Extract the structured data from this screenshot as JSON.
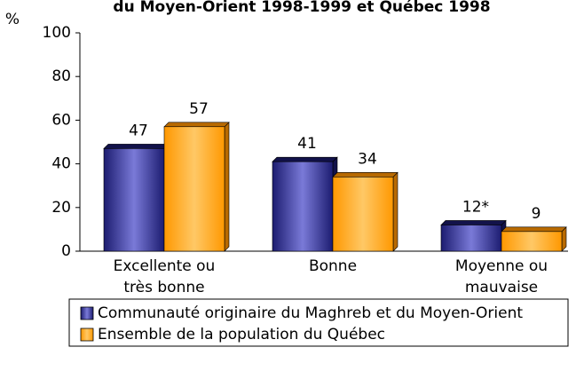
{
  "chart_data": {
    "type": "bar",
    "title": "du Moyen-Orient 1998-1999 et Québec 1998",
    "y_label": "%",
    "categories": [
      "Excellente ou très bonne",
      "Bonne",
      "Moyenne ou mauvaise"
    ],
    "series": [
      {
        "name": "Communauté originaire du Maghreb et du Moyen-Orient",
        "color": "#2b2b8f",
        "values": [
          47,
          41,
          12
        ],
        "value_labels": [
          "47",
          "41",
          "12*"
        ]
      },
      {
        "name": "Ensemble de la population du Québec",
        "color": "#ffa500",
        "values": [
          57,
          34,
          9
        ]
      }
    ],
    "ylim": [
      0,
      100
    ],
    "yticks": [
      0,
      20,
      40,
      60,
      80,
      100
    ],
    "grid": false
  }
}
